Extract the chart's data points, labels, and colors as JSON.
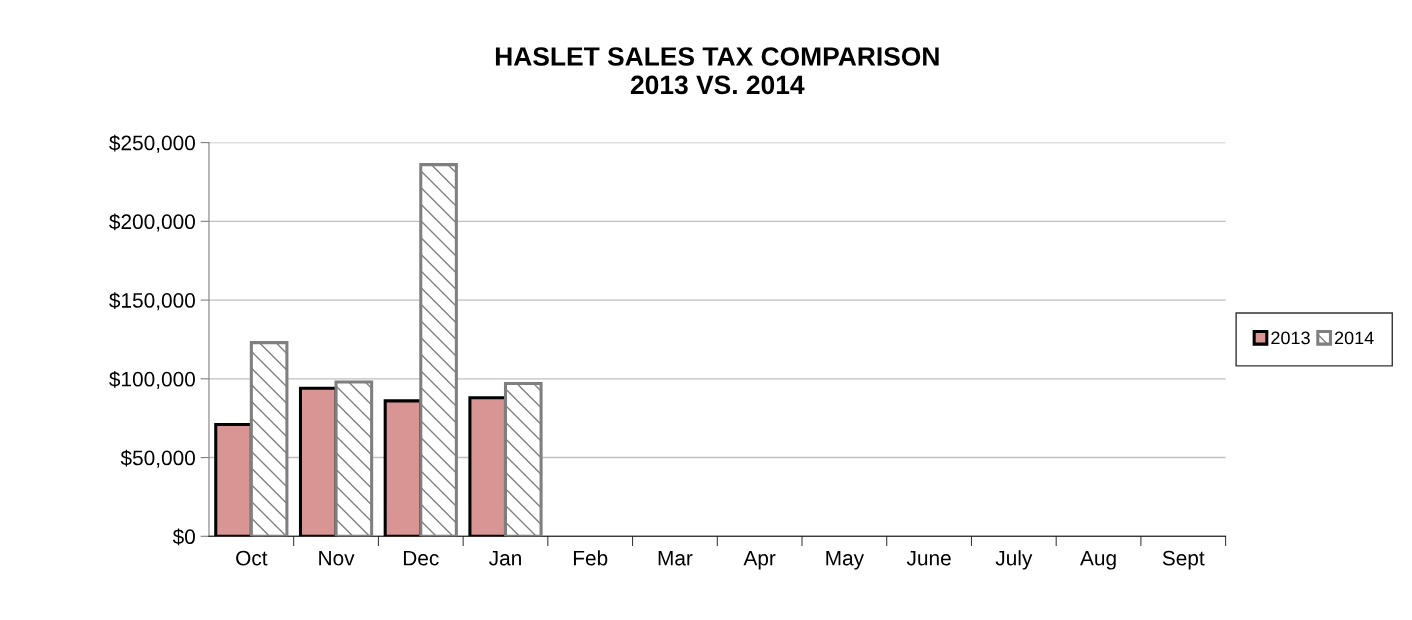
{
  "chart_data": {
    "type": "bar",
    "title": "HASLET SALES TAX COMPARISON\n2013 VS. 2014",
    "categories": [
      "Oct",
      "Nov",
      "Dec",
      "Jan",
      "Feb",
      "Mar",
      "Apr",
      "May",
      "June",
      "July",
      "Aug",
      "Sept"
    ],
    "series": [
      {
        "name": "2013",
        "color": "#d99594",
        "values": [
          71000,
          94000,
          86000,
          88000,
          null,
          null,
          null,
          null,
          null,
          null,
          null,
          null
        ]
      },
      {
        "name": "2014",
        "color": "#7f7f7f",
        "values": [
          123000,
          98000,
          236000,
          97000,
          null,
          null,
          null,
          null,
          null,
          null,
          null,
          null
        ]
      }
    ],
    "ylim": [
      0,
      250000
    ],
    "yticks": [
      {
        "value": 0,
        "label": "$0"
      },
      {
        "value": 50000,
        "label": "$50,000"
      },
      {
        "value": 100000,
        "label": "$100,000"
      },
      {
        "value": 150000,
        "label": "$150,000"
      },
      {
        "value": 200000,
        "label": "$200,000"
      },
      {
        "value": 250000,
        "label": "$250,000"
      }
    ],
    "grid": "y",
    "legend": "right"
  }
}
